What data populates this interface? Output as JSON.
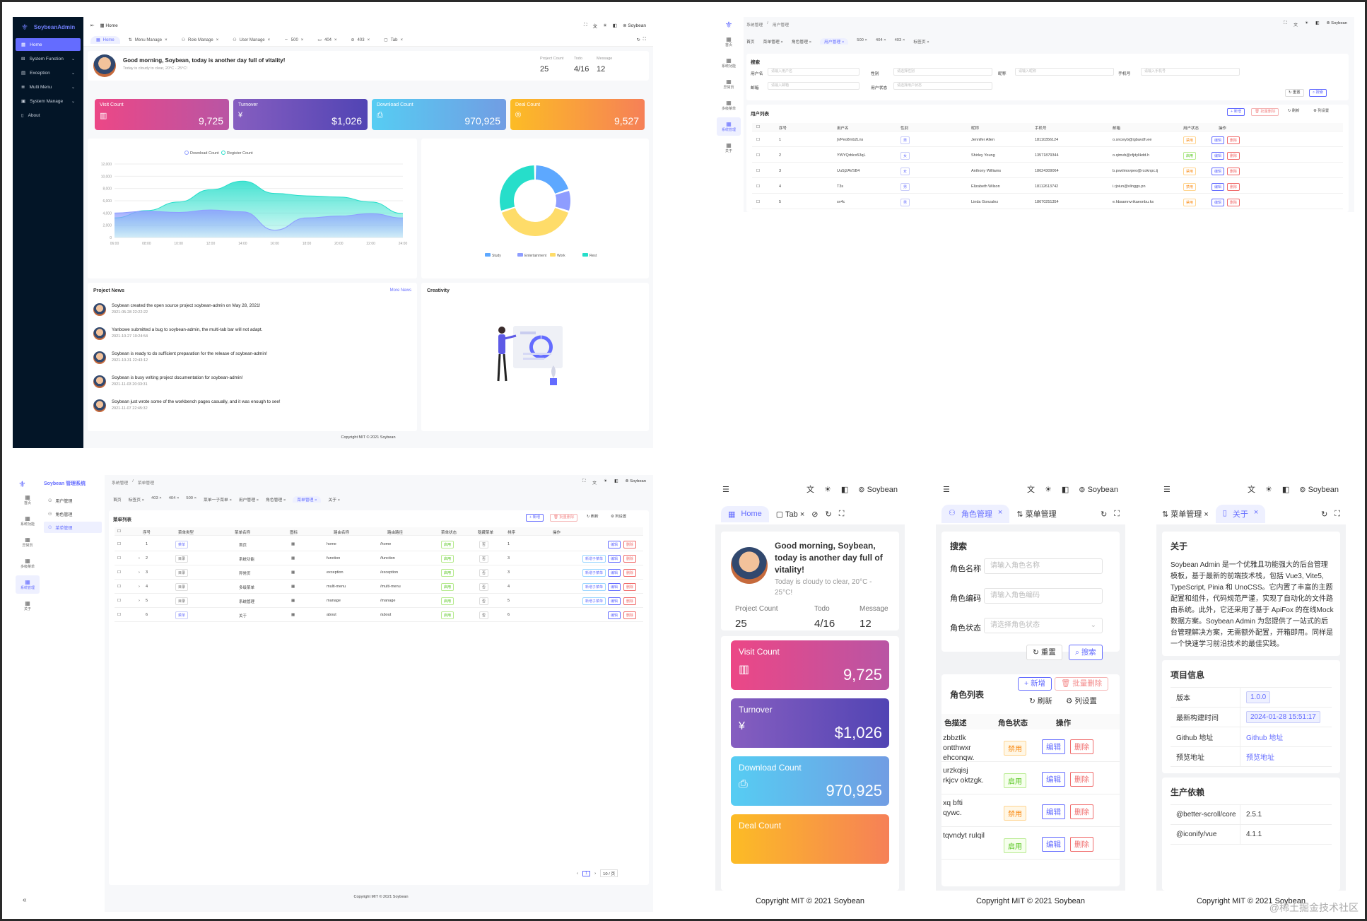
{
  "q1": {
    "brand": "SoybeanAdmin",
    "menu": [
      {
        "label": "Home",
        "active": true
      },
      {
        "label": "System Function"
      },
      {
        "label": "Exception"
      },
      {
        "label": "Multi Menu"
      },
      {
        "label": "System Manage"
      },
      {
        "label": "About"
      }
    ],
    "breadcrumb": "Home",
    "user": "Soybean",
    "tabs": [
      "Home",
      "Menu Manage",
      "Role Manage",
      "User Manage",
      "500",
      "404",
      "403",
      "Tab"
    ],
    "greeting": "Good morning, Soybean, today is another day full of vitality!",
    "weather": "Today is cloudy to clear, 20°C - 25°C!",
    "counters": [
      {
        "label": "Project Count",
        "value": "25"
      },
      {
        "label": "Todo",
        "value": "4/16"
      },
      {
        "label": "Message",
        "value": "12"
      }
    ],
    "stats": [
      {
        "label": "Visit Count",
        "value": "9,725",
        "color1": "#ec4786",
        "color2": "#b955a4"
      },
      {
        "label": "Turnover",
        "value": "$1,026",
        "color1": "#865ec0",
        "color2": "#5144b4"
      },
      {
        "label": "Download Count",
        "value": "970,925",
        "color1": "#56cdf3",
        "color2": "#719de3"
      },
      {
        "label": "Deal Count",
        "value": "9,527",
        "color1": "#fcbc25",
        "color2": "#f68057"
      }
    ],
    "chart_data": [
      {
        "type": "area",
        "x": [
          "06:00",
          "08:00",
          "10:00",
          "12:00",
          "14:00",
          "16:00",
          "18:00",
          "20:00",
          "22:00",
          "24:00"
        ],
        "series": [
          {
            "name": "Download Count",
            "color": "#8e9dff",
            "values": [
              4000,
              4300,
              4100,
              4500,
              4200,
              1200,
              3200,
              3500,
              3900,
              3200
            ]
          },
          {
            "name": "Register Count",
            "color": "#26deca",
            "values": [
              3200,
              4400,
              5800,
              7800,
              9200,
              7200,
              6800,
              6600,
              5800,
              3900
            ]
          }
        ],
        "ylim": [
          0,
          10000
        ],
        "yticks": [
          "0",
          "2,000",
          "4,000",
          "6,000",
          "8,000",
          "10,000",
          "12,000"
        ],
        "legend": "top"
      },
      {
        "type": "pie",
        "categories": [
          "Study",
          "Entertainment",
          "Work",
          "Rest"
        ],
        "values": [
          20,
          10,
          40,
          30
        ],
        "colors": [
          "#5da8ff",
          "#8e9dff",
          "#fedc69",
          "#26deca"
        ],
        "legend": "bottom"
      }
    ],
    "news_title": "Project News",
    "more_news": "More News",
    "news": [
      {
        "text": "Soybean created the open source project soybean-admin on May 28, 2021!",
        "time": "2021-05-28 22:22:22"
      },
      {
        "text": "Yanbowe submitted a bug to soybean-admin, the multi-tab bar will not adapt.",
        "time": "2021-10-27 10:24:54"
      },
      {
        "text": "Soybean is ready to do sufficient preparation for the release of soybean-admin!",
        "time": "2021-10-31 22:43:12"
      },
      {
        "text": "Soybean is busy writing project documentation for soybean-admin!",
        "time": "2021-11-03 20:33:31"
      },
      {
        "text": "Soybean just wrote some of the workbench pages casually, and it was enough to see!",
        "time": "2021-11-07 22:45:32"
      }
    ],
    "creativity": "Creativity",
    "footer": "Copyright MIT © 2021 Soybean"
  },
  "q2": {
    "breadcrumb": [
      "系统管理",
      "用户管理"
    ],
    "user": "Soybean",
    "side": [
      "首页",
      "系统功能",
      "异常页",
      "多级菜单",
      "系统管理",
      "关于"
    ],
    "tabs": [
      "首页",
      "菜单管理",
      "角色管理",
      "用户管理",
      "500",
      "404",
      "403",
      "标签页"
    ],
    "search_title": "搜索",
    "fields": [
      {
        "label": "用户名",
        "ph": "请输入用户名"
      },
      {
        "label": "性别",
        "ph": "请选择性别"
      },
      {
        "label": "昵称",
        "ph": "请输入昵称"
      },
      {
        "label": "手机号",
        "ph": "请输入手机号"
      },
      {
        "label": "邮箱",
        "ph": "请输入邮箱"
      },
      {
        "label": "用户状态",
        "ph": "请选择用户状态"
      }
    ],
    "reset": "重置",
    "search": "搜索",
    "list_title": "用户列表",
    "add": "新增",
    "batch_delete": "批量删除",
    "refresh": "刷新",
    "columns": "列设置",
    "headers": [
      "序号",
      "用户名",
      "性别",
      "昵称",
      "手机号",
      "邮箱",
      "用户状态",
      "操作"
    ],
    "rows": [
      [
        "1",
        "jVPeo8mb2Lns",
        "男",
        "Jennifer Allen",
        "18110356124",
        "o.sncwyb@igbavdh.ee",
        "禁用"
      ],
      [
        "2",
        "YWYQrblcx53qL",
        "女",
        "Shirley Young",
        "13571879344",
        "o.qimvb@cfjdylikdd.h",
        "启用"
      ],
      [
        "3",
        "UuSj2AVSB4",
        "女",
        "Anthony Williams",
        "18624309064",
        "b.pvwlmovpeo@rcoknpc.tj",
        "禁用"
      ],
      [
        "4",
        "T3s",
        "男",
        "Elizabeth Wilson",
        "18112613742",
        "i.rjoiun@vlinggs.pn",
        "禁用"
      ],
      [
        "5",
        "sv4c",
        "男",
        "Linda Gonzalez",
        "18670251354",
        "e.hbsamnvrikaeonbu.ks",
        "禁用"
      ]
    ],
    "edit": "编辑",
    "delete": "删除"
  },
  "q3": {
    "brand": "Soybean 管理系统",
    "breadcrumb": [
      "系统管理",
      "菜单管理"
    ],
    "user": "Soybean",
    "side": [
      "首页",
      "系统功能",
      "异常页",
      "多级菜单",
      "系统管理",
      "关于"
    ],
    "submenu": [
      "用户管理",
      "角色管理",
      "菜单管理"
    ],
    "tabs": [
      "首页",
      "标签页",
      "403",
      "404",
      "500",
      "菜单一子菜单",
      "用户管理",
      "角色管理",
      "菜单管理",
      "关于"
    ],
    "list_title": "菜单列表",
    "add": "新增",
    "batch_delete": "批量删除",
    "refresh": "刷新",
    "columns": "列设置",
    "headers": [
      "序号",
      "菜单类型",
      "菜单名称",
      "图标",
      "路由名称",
      "路由路径",
      "菜单状态",
      "隐藏菜单",
      "排序",
      "操作"
    ],
    "rows": [
      [
        "1",
        "菜单",
        "首页",
        "home",
        "/home",
        "启用",
        "否",
        "1"
      ],
      [
        "2",
        "目录",
        "系统功能",
        "function",
        "/function",
        "启用",
        "否",
        "3"
      ],
      [
        "3",
        "目录",
        "异常页",
        "exception",
        "/exception",
        "启用",
        "否",
        "3"
      ],
      [
        "4",
        "目录",
        "多级菜单",
        "multi-menu",
        "/multi-menu",
        "启用",
        "否",
        "4"
      ],
      [
        "5",
        "目录",
        "系统管理",
        "manage",
        "/manage",
        "启用",
        "否",
        "5"
      ],
      [
        "6",
        "菜单",
        "关于",
        "about",
        "/about",
        "启用",
        "否",
        "6"
      ]
    ],
    "add_child": "新增子菜单",
    "edit": "编辑",
    "delete": "删除",
    "pagination": {
      "page": "1",
      "size": "10 / 页"
    },
    "footer": "Copyright MIT © 2021 Soybean"
  },
  "q4": {
    "user": "Soybean",
    "footer": "Copyright MIT © 2021 Soybean",
    "p1": {
      "tabs": [
        "Home",
        "Tab"
      ],
      "greeting": "Good morning, Soybean, today is another day full of vitality!",
      "weather": "Today is cloudy to clear, 20°C - 25°C!",
      "counters": [
        {
          "label": "Project Count",
          "value": "25"
        },
        {
          "label": "Todo",
          "value": "4/16"
        },
        {
          "label": "Message",
          "value": "12"
        }
      ],
      "stats": [
        {
          "label": "Visit Count",
          "value": "9,725"
        },
        {
          "label": "Turnover",
          "value": "$1,026"
        },
        {
          "label": "Download Count",
          "value": "970,925"
        },
        {
          "label": "Deal Count",
          "value": ""
        }
      ]
    },
    "p2": {
      "tabs": [
        "角色管理",
        "菜单管理"
      ],
      "search_title": "搜索",
      "fields": [
        {
          "label": "角色名称",
          "ph": "请输入角色名称"
        },
        {
          "label": "角色编码",
          "ph": "请输入角色编码"
        },
        {
          "label": "角色状态",
          "ph": "请选择角色状态"
        }
      ],
      "reset": "重置",
      "search": "搜索",
      "list_title": "角色列表",
      "add": "新增",
      "batch_delete": "批量删除",
      "refresh": "刷新",
      "columns": "列设置",
      "headers": [
        "色描述",
        "角色状态",
        "操作"
      ],
      "rows": [
        {
          "desc": [
            "zbbztlk",
            "ontthwxr",
            "ehconqw."
          ],
          "status": "禁用"
        },
        {
          "desc": [
            "urzkqisj",
            "rkjcv oktzgk."
          ],
          "status": "启用"
        },
        {
          "desc": [
            "xq bfti",
            "qywc."
          ],
          "status": "禁用"
        },
        {
          "desc": [
            "tqvndyt rulqil"
          ],
          "status": "启用"
        }
      ],
      "edit": "编辑",
      "delete": "删除"
    },
    "p3": {
      "tabs": [
        "菜单管理",
        "关于"
      ],
      "about_title": "关于",
      "about_text": "Soybean Admin 是一个优雅且功能强大的后台管理模板，基于最新的前端技术栈，包括 Vue3, Vite5, TypeScript, Pinia 和 UnoCSS。它内置了丰富的主题配置和组件，代码规范严谨，实现了自动化的文件路由系统。此外，它还采用了基于 ApiFox 的在线Mock数据方案。Soybean Admin 为您提供了一站式的后台管理解决方案，无需额外配置，开箱即用。同样是一个快速学习前沿技术的最佳实践。",
      "info_title": "项目信息",
      "info": [
        {
          "k": "版本",
          "v": "1.0.0"
        },
        {
          "k": "最新构建时间",
          "v": "2024-01-28 15:51:17"
        },
        {
          "k": "Github 地址",
          "v": "Github 地址"
        },
        {
          "k": "预览地址",
          "v": "预览地址"
        }
      ],
      "deps_title": "生产依赖",
      "deps": [
        {
          "k": "@better-scroll/core",
          "v": "2.5.1"
        },
        {
          "k": "@iconify/vue",
          "v": "4.1.1"
        }
      ]
    }
  },
  "watermark": "@稀土掘金技术社区"
}
